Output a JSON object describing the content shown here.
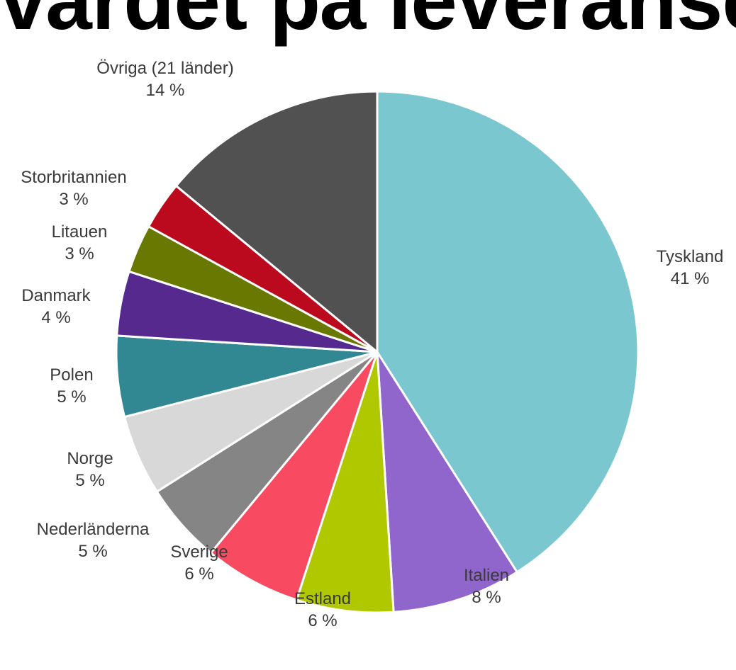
{
  "title": "värdet på leveranse",
  "chart_data": {
    "type": "pie",
    "title": "värdet på leveranse",
    "slices": [
      {
        "name": "Tyskland",
        "value": 41,
        "label": "41 %",
        "color": "#7AC7D0"
      },
      {
        "name": "Italien",
        "value": 8,
        "label": "8 %",
        "color": "#9066CC"
      },
      {
        "name": "Estland",
        "value": 6,
        "label": "6 %",
        "color": "#B0C800"
      },
      {
        "name": "Sverige",
        "value": 6,
        "label": "6 %",
        "color": "#F84A60"
      },
      {
        "name": "Nederländerna",
        "value": 5,
        "label": "5 %",
        "color": "#858585"
      },
      {
        "name": "Norge",
        "value": 5,
        "label": "5 %",
        "color": "#D8D8D8"
      },
      {
        "name": "Polen",
        "value": 5,
        "label": "5 %",
        "color": "#318893"
      },
      {
        "name": "Danmark",
        "value": 4,
        "label": "4 %",
        "color": "#55298E"
      },
      {
        "name": "Litauen",
        "value": 3,
        "label": "3 %",
        "color": "#697800"
      },
      {
        "name": "Storbritannien",
        "value": 3,
        "label": "3 %",
        "color": "#BB0A1E"
      },
      {
        "name": "Övriga (21 länder)",
        "value": 14,
        "label": "14 %",
        "color": "#515151"
      }
    ]
  }
}
